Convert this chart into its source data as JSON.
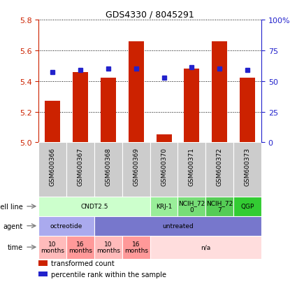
{
  "title": "GDS4330 / 8045291",
  "samples": [
    "GSM600366",
    "GSM600367",
    "GSM600368",
    "GSM600369",
    "GSM600370",
    "GSM600371",
    "GSM600372",
    "GSM600373"
  ],
  "bar_values": [
    5.27,
    5.46,
    5.42,
    5.66,
    5.05,
    5.48,
    5.66,
    5.42
  ],
  "percentile_values": [
    5.46,
    5.47,
    5.48,
    5.48,
    5.42,
    5.49,
    5.48,
    5.47
  ],
  "ylim": [
    5.0,
    5.8
  ],
  "yticks_left": [
    5.0,
    5.2,
    5.4,
    5.6,
    5.8
  ],
  "yticks_right_vals": [
    0,
    25,
    50,
    75,
    100
  ],
  "yticks_right_labels": [
    "0",
    "25",
    "50",
    "75",
    "100%"
  ],
  "bar_color": "#cc2200",
  "percentile_color": "#2222cc",
  "sample_box_color": "#cccccc",
  "cell_line_row": {
    "label": "cell line",
    "groups": [
      {
        "text": "CNDT2.5",
        "start": 0,
        "end": 4,
        "color": "#ccffcc"
      },
      {
        "text": "KRJ-1",
        "start": 4,
        "end": 5,
        "color": "#99ee99"
      },
      {
        "text": "NCIH_72\n0",
        "start": 5,
        "end": 6,
        "color": "#77dd77"
      },
      {
        "text": "NCIH_72\n7",
        "start": 6,
        "end": 7,
        "color": "#55cc55"
      },
      {
        "text": "QGP",
        "start": 7,
        "end": 8,
        "color": "#33cc33"
      }
    ]
  },
  "agent_row": {
    "label": "agent",
    "groups": [
      {
        "text": "octreotide",
        "start": 0,
        "end": 2,
        "color": "#aaaaee"
      },
      {
        "text": "untreated",
        "start": 2,
        "end": 8,
        "color": "#7777cc"
      }
    ]
  },
  "time_row": {
    "label": "time",
    "groups": [
      {
        "text": "10\nmonths",
        "start": 0,
        "end": 1,
        "color": "#ffbbbb"
      },
      {
        "text": "16\nmonths",
        "start": 1,
        "end": 2,
        "color": "#ff9999"
      },
      {
        "text": "10\nmonths",
        "start": 2,
        "end": 3,
        "color": "#ffbbbb"
      },
      {
        "text": "16\nmonths",
        "start": 3,
        "end": 4,
        "color": "#ff9999"
      },
      {
        "text": "n/a",
        "start": 4,
        "end": 8,
        "color": "#ffdddd"
      }
    ]
  },
  "legend_items": [
    {
      "color": "#cc2200",
      "label": "transformed count"
    },
    {
      "color": "#2222cc",
      "label": "percentile rank within the sample"
    }
  ]
}
